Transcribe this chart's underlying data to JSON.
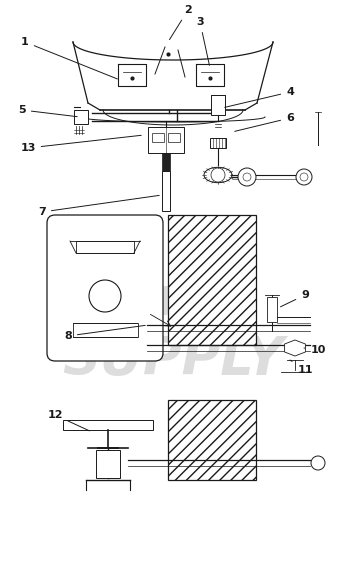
{
  "bg_color": "#ffffff",
  "line_color": "#1a1a1a",
  "watermark_color": "#dddddd",
  "fig_w": 3.46,
  "fig_h": 5.88,
  "dpi": 100
}
